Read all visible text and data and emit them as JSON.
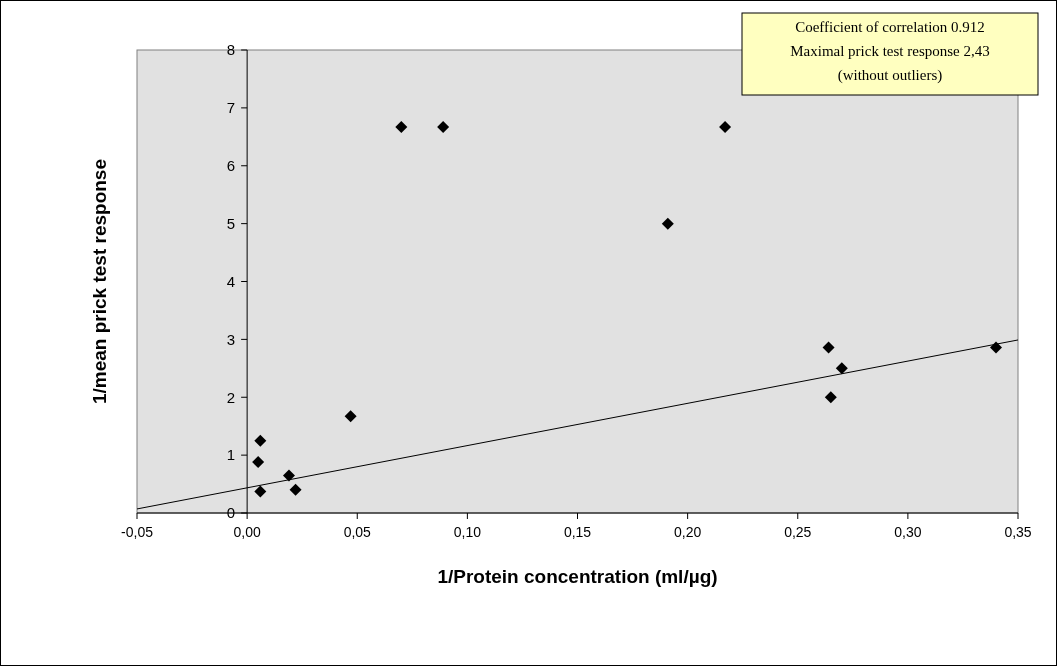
{
  "chart_data": {
    "type": "scatter",
    "xlabel": "1/Protein concentration (ml/µg)",
    "ylabel": "1/mean prick test response",
    "xlim": [
      -0.05,
      0.35
    ],
    "xticks": [
      {
        "value": -0.05,
        "label": "-0,05"
      },
      {
        "value": 0,
        "label": "0,00"
      },
      {
        "value": 0.05,
        "label": "0,05"
      },
      {
        "value": 0.1,
        "label": "0,10"
      },
      {
        "value": 0.15,
        "label": "0,15"
      },
      {
        "value": 0.2,
        "label": "0,20"
      },
      {
        "value": 0.25,
        "label": "0,25"
      },
      {
        "value": 0.3,
        "label": "0,30"
      },
      {
        "value": 0.35,
        "label": "0,35"
      }
    ],
    "ylim": [
      0,
      8
    ],
    "yticks": [
      0,
      1,
      2,
      3,
      4,
      5,
      6,
      7,
      8
    ],
    "grid": false,
    "series": [
      {
        "color": "#000000",
        "x": [
          0.006,
          0.005,
          0.006,
          0.019,
          0.022,
          0.047,
          0.07,
          0.089,
          0.191,
          0.217,
          0.264,
          0.265,
          0.27,
          0.34
        ],
        "values": [
          1.25,
          0.88,
          0.37,
          0.65,
          0.4,
          1.67,
          6.67,
          6.67,
          5.0,
          6.67,
          2.86,
          2.0,
          2.5,
          2.86
        ]
      },
      {
        "type": "line",
        "color": "#000000",
        "marker": "none",
        "x": [
          -0.05,
          0.35
        ],
        "values": [
          0.07,
          2.99
        ]
      }
    ],
    "marker": "diamond",
    "annotations": [
      "Coefficient of correlation  0.912",
      "Maximal prick test response  2,43",
      "(without outliers)"
    ]
  }
}
